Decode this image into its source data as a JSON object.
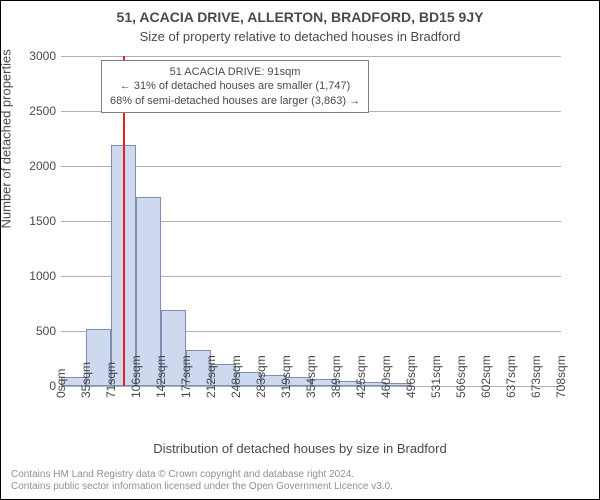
{
  "title": "51, ACACIA DRIVE, ALLERTON, BRADFORD, BD15 9JY",
  "subtitle": "Size of property relative to detached houses in Bradford",
  "yaxis_label": "Number of detached properties",
  "xaxis_label": "Distribution of detached houses by size in Bradford",
  "chart": {
    "type": "histogram",
    "ylim_max": 3000,
    "ytick_step": 500,
    "yticks": [
      0,
      500,
      1000,
      1500,
      2000,
      2500,
      3000
    ],
    "bar_fill": "#ced8ee",
    "bar_stroke": "#7a8fb0",
    "grid_color": "#b0b0b0",
    "background_color": "#ffffff",
    "marker_color": "#e62020",
    "marker_value_sqm": 91,
    "x_min": 0,
    "x_max": 720,
    "xtick_labels": [
      "0sqm",
      "35sqm",
      "71sqm",
      "106sqm",
      "142sqm",
      "177sqm",
      "212sqm",
      "248sqm",
      "283sqm",
      "319sqm",
      "354sqm",
      "389sqm",
      "425sqm",
      "460sqm",
      "496sqm",
      "531sqm",
      "566sqm",
      "602sqm",
      "637sqm",
      "673sqm",
      "708sqm"
    ],
    "values": [
      80,
      520,
      2190,
      1720,
      690,
      330,
      200,
      130,
      100,
      80,
      60,
      50,
      40,
      30,
      0,
      0,
      0,
      0,
      0,
      0
    ]
  },
  "annotation": {
    "line1": "51 ACACIA DRIVE: 91sqm",
    "line2": "← 31% of detached houses are smaller (1,747)",
    "line3": "68% of semi-detached houses are larger (3,863) →"
  },
  "footer": {
    "line1": "Contains HM Land Registry data © Crown copyright and database right 2024.",
    "line2": "Contains public sector information licensed under the Open Government Licence v3.0."
  }
}
